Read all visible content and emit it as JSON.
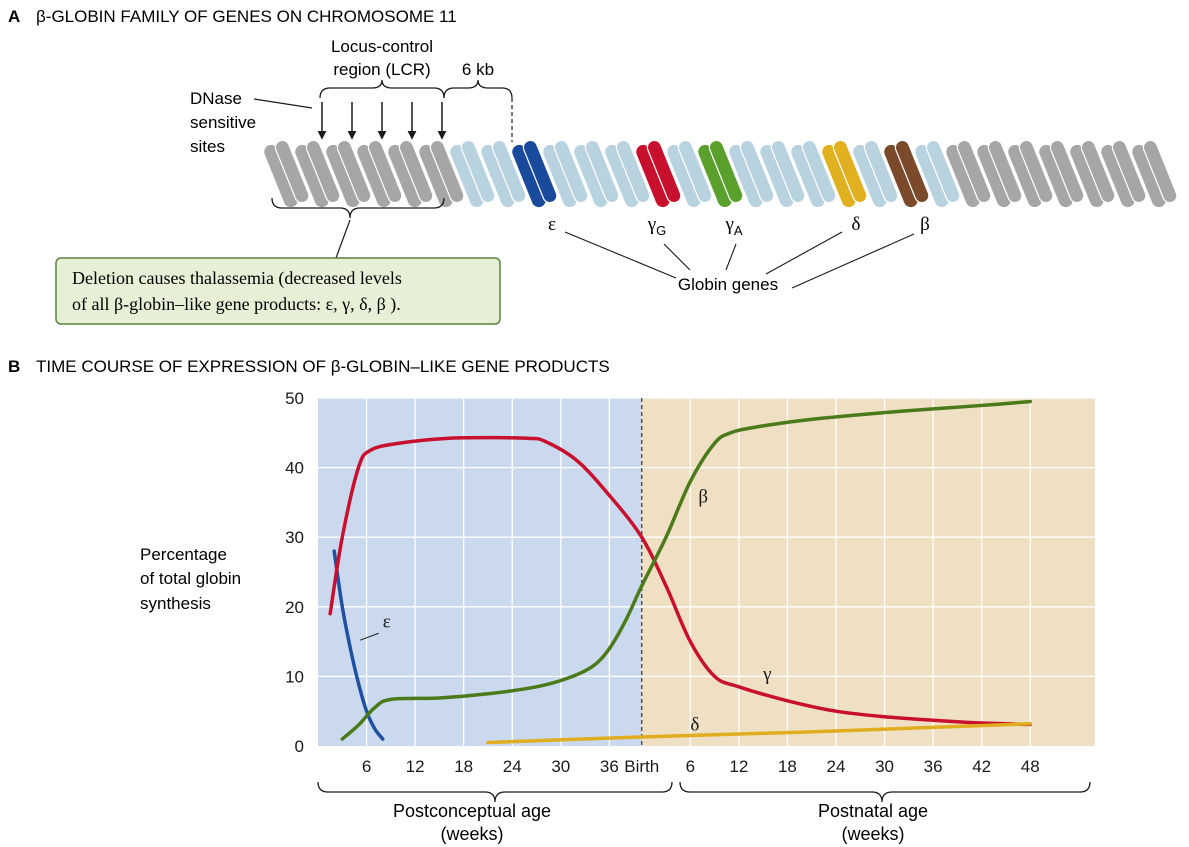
{
  "panel_a": {
    "letter": "A",
    "title": "β-GLOBIN FAMILY OF GENES ON CHROMOSOME 11",
    "lcr_label_line1": "Locus-control",
    "lcr_label_line2": "region (LCR)",
    "distance_label": "6 kb",
    "dnase_line1": "DNase",
    "dnase_line2": "sensitive",
    "dnase_line3": "sites",
    "callout_line1": "Deletion causes thalassemia (decreased levels",
    "callout_line2": "of all β-globin–like gene products: ε, γ, δ, β ).",
    "globin_genes_label": "Globin genes",
    "genes": [
      {
        "label": "ε",
        "sub": "",
        "color": "#1a4a9c"
      },
      {
        "label": "γ",
        "sub": "G",
        "color": "#c8102e"
      },
      {
        "label": "γ",
        "sub": "A",
        "color": "#5aa02c"
      },
      {
        "label": "δ",
        "sub": "",
        "color": "#e0b020"
      },
      {
        "label": "β",
        "sub": "",
        "color": "#7a4a2a"
      }
    ],
    "colors": {
      "lcr": "#a6a6a6",
      "spacer": "#b9d2df",
      "callout_bg": "#e5f0d6",
      "callout_border": "#5c8040"
    }
  },
  "panel_b": {
    "letter": "B",
    "title": "TIME COURSE OF EXPRESSION OF β-GLOBIN–LIKE GENE PRODUCTS",
    "ylabel_line1": "Percentage",
    "ylabel_line2": "of total globin",
    "ylabel_line3": "synthesis",
    "prenatal_label_line1": "Postconceptual age",
    "prenatal_label_line2": "(weeks)",
    "postnatal_label_line1": "Postnatal age",
    "postnatal_label_line2": "(weeks)",
    "colors": {
      "prenatal_bg": "#cad9ee",
      "postnatal_bg": "#efe0c3"
    }
  },
  "chart_data": {
    "type": "line",
    "x_unit": "weeks",
    "xlim": [
      0,
      96
    ],
    "ylim": [
      0,
      50
    ],
    "grid": true,
    "birth_x": 40,
    "x_ticks": [
      {
        "x": 6,
        "label": "6"
      },
      {
        "x": 12,
        "label": "12"
      },
      {
        "x": 18,
        "label": "18"
      },
      {
        "x": 24,
        "label": "24"
      },
      {
        "x": 30,
        "label": "30"
      },
      {
        "x": 36,
        "label": "36"
      },
      {
        "x": 40,
        "label": "Birth"
      },
      {
        "x": 46,
        "label": "6"
      },
      {
        "x": 52,
        "label": "12"
      },
      {
        "x": 58,
        "label": "18"
      },
      {
        "x": 64,
        "label": "24"
      },
      {
        "x": 70,
        "label": "30"
      },
      {
        "x": 76,
        "label": "36"
      },
      {
        "x": 82,
        "label": "42"
      },
      {
        "x": 88,
        "label": "48"
      }
    ],
    "y_ticks": [
      0,
      10,
      20,
      30,
      40,
      50
    ],
    "series": [
      {
        "name": "ε",
        "color": "#2050a0",
        "x": [
          2,
          3,
          4,
          5,
          6,
          7,
          8
        ],
        "y": [
          28,
          20,
          14,
          9,
          5,
          2.5,
          1
        ]
      },
      {
        "name": "γ",
        "color": "#c8102e",
        "x": [
          1.5,
          3,
          5,
          6.5,
          10,
          16,
          22,
          26,
          28,
          32,
          36,
          40,
          43,
          46,
          49,
          52,
          58,
          64,
          70,
          76,
          82,
          88
        ],
        "y": [
          19,
          30,
          40,
          42.5,
          43.5,
          44.2,
          44.3,
          44.2,
          43.8,
          41,
          36,
          30,
          23,
          15,
          10,
          8.5,
          6.5,
          5,
          4.2,
          3.7,
          3.3,
          3.1
        ]
      },
      {
        "name": "β",
        "color": "#4a7a1a",
        "x": [
          3,
          5,
          7,
          9,
          15,
          21,
          27,
          31,
          34,
          36,
          38,
          40,
          43,
          46,
          49,
          51,
          54,
          60,
          66,
          72,
          78,
          84,
          88
        ],
        "y": [
          1,
          3,
          5.5,
          6.7,
          6.9,
          7.5,
          8.5,
          9.8,
          11.5,
          14,
          18,
          23,
          30,
          38,
          43.5,
          45,
          45.8,
          46.8,
          47.5,
          48.1,
          48.6,
          49.1,
          49.5
        ]
      },
      {
        "name": "δ",
        "color": "#e0ac20",
        "x": [
          21,
          40,
          60,
          88
        ],
        "y": [
          0.5,
          1.3,
          2,
          3.2
        ]
      }
    ]
  }
}
